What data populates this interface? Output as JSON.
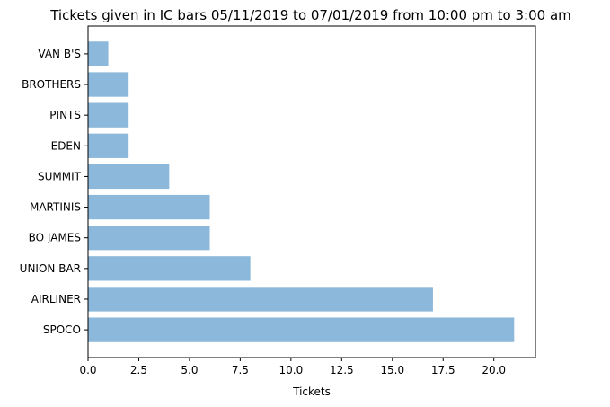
{
  "chart_data": {
    "type": "bar",
    "orientation": "horizontal",
    "title": "Tickets given in IC bars 05/11/2019 to 07/01/2019 from 10:00 pm to 3:00 am",
    "xlabel": "Tickets",
    "ylabel": "",
    "categories": [
      "SPOCO",
      "AIRLINER",
      "UNION BAR",
      "BO JAMES",
      "MARTINIS",
      "SUMMIT",
      "EDEN",
      "PINTS",
      "BROTHERS",
      "VAN B'S"
    ],
    "values": [
      21,
      17,
      8,
      6,
      6,
      4,
      2,
      2,
      2,
      1
    ],
    "xlim": [
      0,
      22.05
    ],
    "xticks": [
      "0.0",
      "2.5",
      "5.0",
      "7.5",
      "10.0",
      "12.5",
      "15.0",
      "17.5",
      "20.0"
    ],
    "bar_color": "#8cb9db",
    "grid": false,
    "legend": false
  }
}
